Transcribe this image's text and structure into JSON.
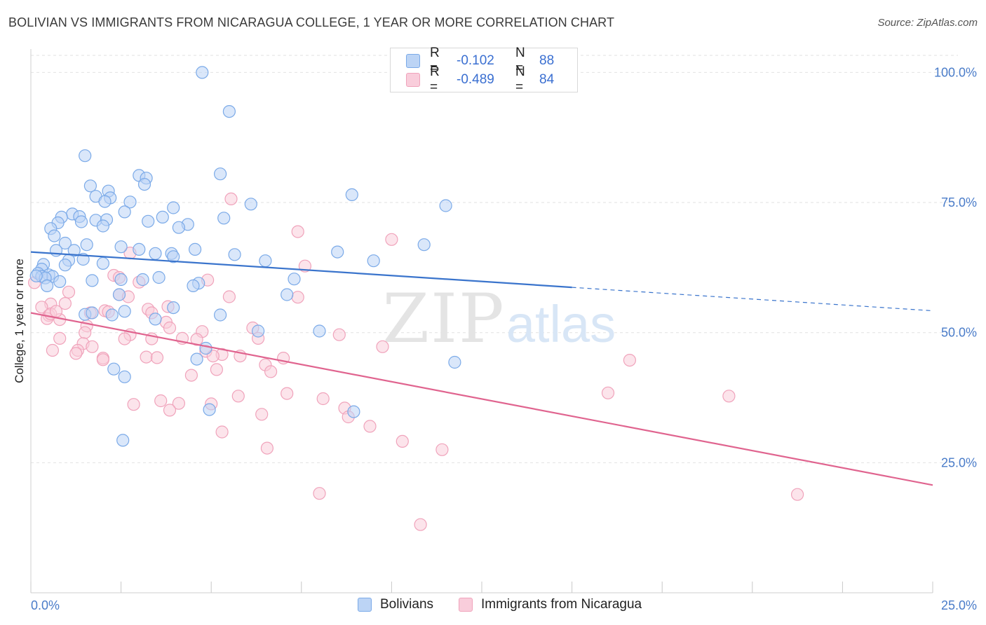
{
  "header": {
    "title": "BOLIVIAN VS IMMIGRANTS FROM NICARAGUA COLLEGE, 1 YEAR OR MORE CORRELATION CHART",
    "source": "Source: ZipAtlas.com"
  },
  "watermark": {
    "zip": "ZIP",
    "atlas": "atlas"
  },
  "legend": {
    "rows": [
      {
        "r_label": "R =",
        "r_value": "-0.102",
        "n_label": "N =",
        "n_value": "88"
      },
      {
        "r_label": "R =",
        "r_value": "-0.489",
        "n_label": "N =",
        "n_value": "84"
      }
    ]
  },
  "chart_data": {
    "type": "scatter",
    "ylabel": "College, 1 year or more",
    "xlabel": "",
    "xlim": [
      0,
      25
    ],
    "ylim": [
      0,
      104.5
    ],
    "x_tick_labels": [
      "0.0%",
      "25.0%"
    ],
    "y_tick_labels": [
      "25.0%",
      "50.0%",
      "75.0%",
      "100.0%"
    ],
    "y_ticks": [
      25,
      50,
      75,
      100
    ],
    "grid": true,
    "legend_position": "top-center",
    "series": [
      {
        "name": "Bolivians",
        "color": "#7baae8",
        "fill": "#bcd4f5",
        "trend": {
          "x0": 0,
          "y0": 65.5,
          "x1": 15,
          "y1": 58.7,
          "dash_to_x": 25,
          "dash_to_y": 54.2,
          "color": "#3a74cc"
        },
        "points": [
          [
            4.75,
            100
          ],
          [
            5.5,
            92.5
          ],
          [
            1.5,
            84
          ],
          [
            3.0,
            80.2
          ],
          [
            3.2,
            79.7
          ],
          [
            5.25,
            80.5
          ],
          [
            1.65,
            78.2
          ],
          [
            3.15,
            78.5
          ],
          [
            2.15,
            77.2
          ],
          [
            1.8,
            76.2
          ],
          [
            2.2,
            75.9
          ],
          [
            2.05,
            75.2
          ],
          [
            2.75,
            75.1
          ],
          [
            8.9,
            76.5
          ],
          [
            6.1,
            74.7
          ],
          [
            11.5,
            74.4
          ],
          [
            3.95,
            74.0
          ],
          [
            2.6,
            73.2
          ],
          [
            1.15,
            72.8
          ],
          [
            0.85,
            72.2
          ],
          [
            1.35,
            72.3
          ],
          [
            1.8,
            71.6
          ],
          [
            2.1,
            71.7
          ],
          [
            3.25,
            71.4
          ],
          [
            3.65,
            72.2
          ],
          [
            4.35,
            70.8
          ],
          [
            5.35,
            72.0
          ],
          [
            1.4,
            71.3
          ],
          [
            0.75,
            71.1
          ],
          [
            2.0,
            70.5
          ],
          [
            4.1,
            70.2
          ],
          [
            0.55,
            70.0
          ],
          [
            0.65,
            68.6
          ],
          [
            1.55,
            66.9
          ],
          [
            0.95,
            67.2
          ],
          [
            10.9,
            66.9
          ],
          [
            2.5,
            66.5
          ],
          [
            3.0,
            66.0
          ],
          [
            4.55,
            66.0
          ],
          [
            1.2,
            65.8
          ],
          [
            0.7,
            65.8
          ],
          [
            8.5,
            65.5
          ],
          [
            3.45,
            65.2
          ],
          [
            3.9,
            65.2
          ],
          [
            3.95,
            64.6
          ],
          [
            5.65,
            65.0
          ],
          [
            1.45,
            64.1
          ],
          [
            1.05,
            63.9
          ],
          [
            6.5,
            63.8
          ],
          [
            9.5,
            63.8
          ],
          [
            0.35,
            63.1
          ],
          [
            2.0,
            63.3
          ],
          [
            0.95,
            63.0
          ],
          [
            0.3,
            62.2
          ],
          [
            0.2,
            61.4
          ],
          [
            0.5,
            61.1
          ],
          [
            0.6,
            60.8
          ],
          [
            0.3,
            60.8
          ],
          [
            0.4,
            60.5
          ],
          [
            0.15,
            60.9
          ],
          [
            3.55,
            60.6
          ],
          [
            7.3,
            60.3
          ],
          [
            2.5,
            60.2
          ],
          [
            3.1,
            60.2
          ],
          [
            1.7,
            60.0
          ],
          [
            0.8,
            59.8
          ],
          [
            4.65,
            59.5
          ],
          [
            4.5,
            59.0
          ],
          [
            0.45,
            59.0
          ],
          [
            7.1,
            57.3
          ],
          [
            2.45,
            57.3
          ],
          [
            3.95,
            54.8
          ],
          [
            2.6,
            54.1
          ],
          [
            5.25,
            53.4
          ],
          [
            1.5,
            53.5
          ],
          [
            2.25,
            53.4
          ],
          [
            1.7,
            53.8
          ],
          [
            3.45,
            52.6
          ],
          [
            6.3,
            50.3
          ],
          [
            8.0,
            50.3
          ],
          [
            4.85,
            47.0
          ],
          [
            4.6,
            44.9
          ],
          [
            11.75,
            44.3
          ],
          [
            2.3,
            43.0
          ],
          [
            2.6,
            41.5
          ],
          [
            4.95,
            35.2
          ],
          [
            8.95,
            34.8
          ],
          [
            2.55,
            29.3
          ]
        ]
      },
      {
        "name": "Immigrants from Nicaragua",
        "color": "#f0a3bb",
        "fill": "#f9cddb",
        "trend": {
          "x0": 0,
          "y0": 53.8,
          "x1": 25,
          "y1": 20.7,
          "color": "#e0648f"
        },
        "points": [
          [
            5.55,
            75.7
          ],
          [
            10.0,
            67.9
          ],
          [
            7.4,
            69.4
          ],
          [
            2.75,
            65.3
          ],
          [
            7.6,
            62.8
          ],
          [
            2.3,
            61.0
          ],
          [
            2.45,
            60.6
          ],
          [
            4.9,
            60.1
          ],
          [
            3.0,
            59.7
          ],
          [
            0.1,
            59.6
          ],
          [
            1.05,
            57.8
          ],
          [
            2.45,
            57.3
          ],
          [
            2.7,
            56.9
          ],
          [
            7.4,
            56.8
          ],
          [
            5.5,
            56.9
          ],
          [
            0.95,
            55.6
          ],
          [
            0.55,
            55.5
          ],
          [
            0.3,
            54.9
          ],
          [
            3.8,
            55.0
          ],
          [
            3.25,
            54.5
          ],
          [
            2.05,
            54.2
          ],
          [
            2.15,
            54.0
          ],
          [
            3.35,
            53.8
          ],
          [
            1.65,
            53.8
          ],
          [
            0.5,
            53.3
          ],
          [
            0.45,
            52.7
          ],
          [
            0.8,
            52.5
          ],
          [
            3.75,
            52.0
          ],
          [
            1.55,
            51.3
          ],
          [
            3.85,
            50.9
          ],
          [
            6.15,
            50.9
          ],
          [
            4.75,
            50.2
          ],
          [
            1.5,
            50.0
          ],
          [
            8.55,
            49.6
          ],
          [
            2.75,
            49.6
          ],
          [
            0.8,
            48.9
          ],
          [
            2.6,
            48.8
          ],
          [
            3.35,
            48.8
          ],
          [
            4.2,
            48.9
          ],
          [
            6.3,
            48.9
          ],
          [
            4.6,
            48.7
          ],
          [
            1.45,
            47.9
          ],
          [
            1.7,
            47.3
          ],
          [
            9.75,
            47.3
          ],
          [
            0.6,
            46.6
          ],
          [
            4.85,
            46.4
          ],
          [
            1.3,
            46.6
          ],
          [
            1.25,
            46.0
          ],
          [
            5.3,
            45.8
          ],
          [
            5.05,
            45.5
          ],
          [
            5.8,
            45.5
          ],
          [
            3.2,
            45.3
          ],
          [
            3.5,
            45.2
          ],
          [
            7.0,
            45.1
          ],
          [
            2.0,
            45.1
          ],
          [
            16.6,
            44.7
          ],
          [
            6.5,
            43.8
          ],
          [
            5.15,
            42.9
          ],
          [
            6.65,
            42.5
          ],
          [
            4.45,
            41.8
          ],
          [
            7.1,
            38.3
          ],
          [
            16.0,
            38.4
          ],
          [
            19.35,
            37.8
          ],
          [
            5.75,
            37.8
          ],
          [
            3.6,
            36.9
          ],
          [
            8.1,
            37.3
          ],
          [
            4.1,
            36.4
          ],
          [
            5.0,
            36.3
          ],
          [
            2.85,
            36.2
          ],
          [
            8.7,
            35.5
          ],
          [
            3.85,
            35.1
          ],
          [
            6.4,
            34.3
          ],
          [
            8.8,
            33.8
          ],
          [
            9.4,
            32.0
          ],
          [
            5.3,
            30.9
          ],
          [
            10.3,
            29.1
          ],
          [
            11.4,
            27.5
          ],
          [
            6.55,
            27.8
          ],
          [
            8.0,
            19.1
          ],
          [
            21.25,
            18.9
          ],
          [
            10.8,
            13.1
          ],
          [
            2.0,
            44.8
          ],
          [
            0.55,
            53.6
          ],
          [
            0.7,
            54.1
          ]
        ]
      }
    ]
  }
}
